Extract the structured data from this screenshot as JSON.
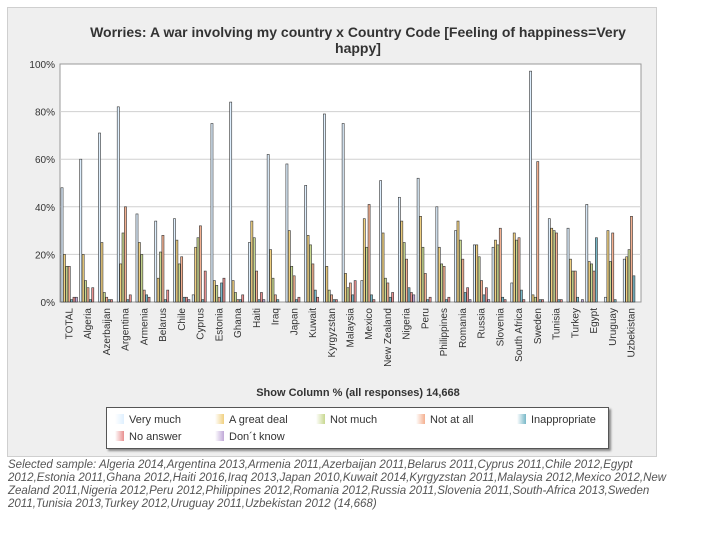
{
  "chart_data": {
    "type": "bar",
    "title": "Worries: A war involving my country x Country Code [Feeling of happiness=Very happy]",
    "xlabel": "Show Column % (all responses) 14,668",
    "ylabel": "",
    "ylim": [
      0,
      100
    ],
    "yticks": [
      "0%",
      "20%",
      "40%",
      "60%",
      "80%",
      "100%"
    ],
    "grid": true,
    "legend_position": "bottom",
    "categories": [
      "TOTAL",
      "Algeria",
      "Azerbaijan",
      "Argentina",
      "Armenia",
      "Belarus",
      "Chile",
      "Cyprus",
      "Estonia",
      "Ghana",
      "Haiti",
      "Iraq",
      "Japan",
      "Kuwait",
      "Kyrgyzstan",
      "Malaysia",
      "Mexico",
      "New Zealand",
      "Nigeria",
      "Peru",
      "Philippines",
      "Romania",
      "Russia",
      "Slovenia",
      "South Africa",
      "Sweden",
      "Tunisia",
      "Turkey",
      "Egypt",
      "Uruguay",
      "Uzbekistan"
    ],
    "series": [
      {
        "name": "Very much",
        "color": "#dff0ff",
        "values": [
          48,
          60,
          71,
          82,
          37,
          34,
          35,
          3,
          75,
          84,
          25,
          62,
          58,
          49,
          79,
          75,
          9,
          51,
          44,
          52,
          40,
          30,
          24,
          23,
          8,
          97,
          35,
          31,
          41,
          2,
          18
        ]
      },
      {
        "name": "A great deal",
        "color": "#f0d080",
        "values": [
          20,
          20,
          25,
          16,
          25,
          10,
          26,
          23,
          9,
          9,
          34,
          22,
          30,
          28,
          15,
          12,
          35,
          29,
          34,
          36,
          23,
          34,
          24,
          26,
          29,
          3,
          31,
          18,
          17,
          30,
          19
        ]
      },
      {
        "name": "Not much",
        "color": "#c8d890",
        "values": [
          15,
          9,
          4,
          29,
          20,
          21,
          16,
          27,
          7,
          4,
          27,
          10,
          15,
          24,
          5,
          6,
          23,
          10,
          25,
          23,
          16,
          26,
          19,
          24,
          26,
          2,
          30,
          13,
          16,
          17,
          22
        ]
      },
      {
        "name": "Not at all",
        "color": "#f4b090",
        "values": [
          15,
          6,
          2,
          40,
          5,
          28,
          19,
          32,
          2,
          1,
          13,
          3,
          11,
          16,
          3,
          8,
          41,
          8,
          18,
          12,
          15,
          18,
          9,
          31,
          27,
          59,
          29,
          13,
          13,
          29,
          36
        ]
      },
      {
        "name": "Inappropriate",
        "color": "#78b8c8",
        "values": [
          1,
          1,
          1,
          1,
          3,
          1,
          2,
          1,
          8,
          1,
          1,
          1,
          1,
          5,
          1,
          3,
          3,
          2,
          6,
          1,
          1,
          4,
          3,
          2,
          5,
          1,
          1,
          2,
          27,
          1,
          11
        ]
      },
      {
        "name": "No answer",
        "color": "#e89090",
        "values": [
          2,
          6,
          1,
          3,
          2,
          5,
          2,
          13,
          10,
          3,
          4,
          0,
          2,
          2,
          1,
          9,
          1,
          4,
          4,
          2,
          2,
          6,
          6,
          1,
          1,
          1,
          1,
          0,
          0,
          0,
          0
        ]
      },
      {
        "name": "Don´t know",
        "color": "#c0a8d8",
        "values": [
          2,
          0,
          0,
          0,
          0,
          0,
          1,
          0,
          0,
          0,
          1,
          0,
          0,
          0,
          0,
          0,
          0,
          0,
          3,
          0,
          0,
          1,
          1,
          0,
          0,
          0,
          0,
          1,
          0,
          0,
          0
        ]
      }
    ]
  },
  "footnote": "Selected sample: Algeria 2014,Argentina 2013,Armenia 2011,Azerbaijan 2011,Belarus 2011,Cyprus 2011,Chile 2012,Egypt 2012,Estonia 2011,Ghana 2012,Haiti 2016,Iraq 2013,Japan 2010,Kuwait 2014,Kyrgyzstan 2011,Malaysia 2012,Mexico 2012,New Zealand 2011,Nigeria 2012,Peru 2012,Philippines 2012,Romania 2012,Russia 2011,Slovenia 2011,South-Africa 2013,Sweden 2011,Tunisia 2013,Turkey 2012,Uruguay 2011,Uzbekistan 2012 (14,668)"
}
